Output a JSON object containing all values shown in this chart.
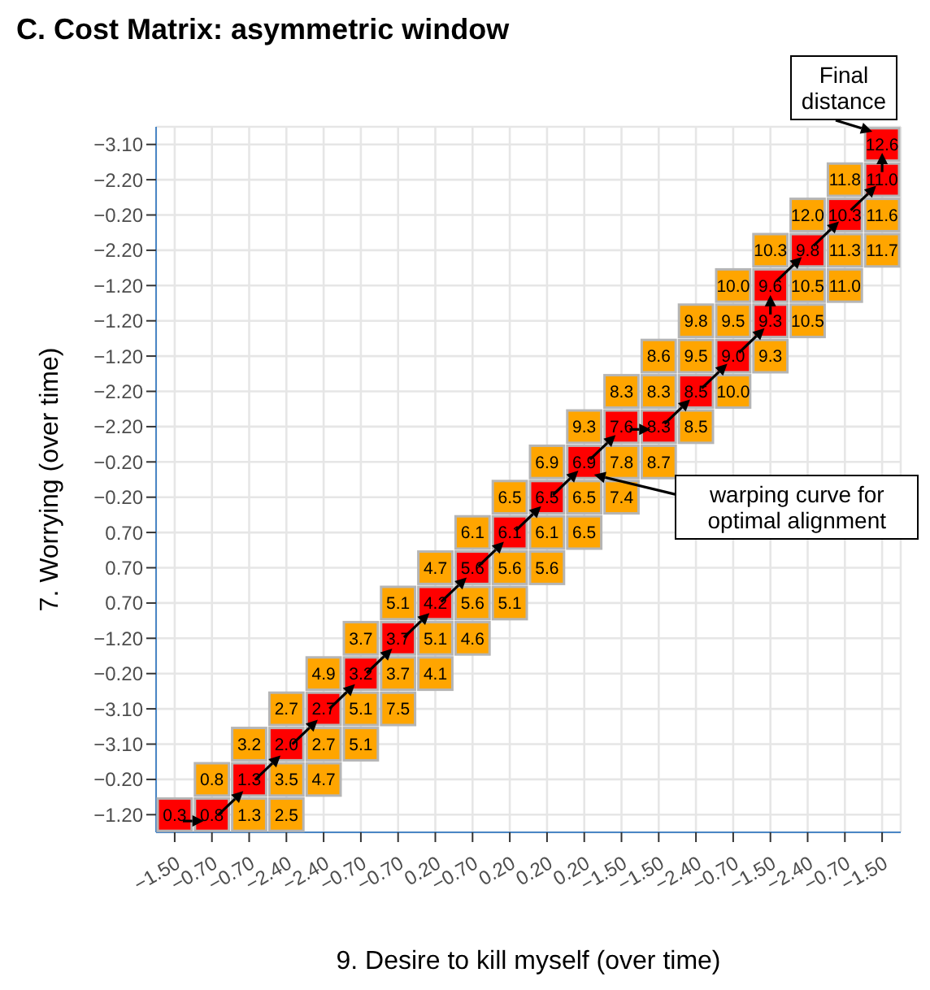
{
  "chart_data": {
    "type": "heatmap",
    "title": "C. Cost Matrix: asymmetric window",
    "xlabel": "9. Desire to kill myself (over time)",
    "ylabel": "7. Worrying (over time)",
    "categories": [
      "−1.50",
      "−0.70",
      "−0.70",
      "−2.40",
      "−2.40",
      "−0.70",
      "−0.70",
      "0.20",
      "−0.70",
      "0.20",
      "0.20",
      "0.20",
      "−1.50",
      "−1.50",
      "−2.40",
      "−0.70",
      "−1.50",
      "−2.40",
      "−0.70",
      "−1.50"
    ],
    "y_categories": [
      "−3.10",
      "−2.20",
      "−0.20",
      "−2.20",
      "−1.20",
      "−1.20",
      "−1.20",
      "−2.20",
      "−2.20",
      "−0.20",
      "−0.20",
      "0.70",
      "0.70",
      "0.70",
      "−1.20",
      "−0.20",
      "−3.10",
      "−3.10",
      "−0.20",
      "−1.20"
    ],
    "cells": [
      [
        null,
        null,
        null,
        null,
        null,
        null,
        null,
        null,
        null,
        null,
        null,
        null,
        null,
        null,
        null,
        null,
        null,
        null,
        null,
        12.6
      ],
      [
        null,
        null,
        null,
        null,
        null,
        null,
        null,
        null,
        null,
        null,
        null,
        null,
        null,
        null,
        null,
        null,
        null,
        null,
        11.8,
        11.0
      ],
      [
        null,
        null,
        null,
        null,
        null,
        null,
        null,
        null,
        null,
        null,
        null,
        null,
        null,
        null,
        null,
        null,
        null,
        12.0,
        10.3,
        11.6
      ],
      [
        null,
        null,
        null,
        null,
        null,
        null,
        null,
        null,
        null,
        null,
        null,
        null,
        null,
        null,
        null,
        null,
        10.3,
        9.8,
        11.3,
        11.7
      ],
      [
        null,
        null,
        null,
        null,
        null,
        null,
        null,
        null,
        null,
        null,
        null,
        null,
        null,
        null,
        null,
        10.0,
        9.6,
        10.5,
        11.0,
        null
      ],
      [
        null,
        null,
        null,
        null,
        null,
        null,
        null,
        null,
        null,
        null,
        null,
        null,
        null,
        null,
        9.8,
        9.5,
        9.3,
        10.5,
        null,
        null
      ],
      [
        null,
        null,
        null,
        null,
        null,
        null,
        null,
        null,
        null,
        null,
        null,
        null,
        null,
        8.6,
        9.5,
        9.0,
        9.3,
        null,
        null,
        null
      ],
      [
        null,
        null,
        null,
        null,
        null,
        null,
        null,
        null,
        null,
        null,
        null,
        null,
        8.3,
        8.3,
        8.5,
        10.0,
        null,
        null,
        null,
        null
      ],
      [
        null,
        null,
        null,
        null,
        null,
        null,
        null,
        null,
        null,
        null,
        null,
        9.3,
        7.6,
        8.3,
        8.5,
        null,
        null,
        null,
        null,
        null
      ],
      [
        null,
        null,
        null,
        null,
        null,
        null,
        null,
        null,
        null,
        null,
        6.9,
        6.9,
        7.8,
        8.7,
        null,
        null,
        null,
        null,
        null,
        null
      ],
      [
        null,
        null,
        null,
        null,
        null,
        null,
        null,
        null,
        null,
        6.5,
        6.5,
        6.5,
        7.4,
        null,
        null,
        null,
        null,
        null,
        null,
        null
      ],
      [
        null,
        null,
        null,
        null,
        null,
        null,
        null,
        null,
        6.1,
        6.1,
        6.1,
        6.5,
        null,
        null,
        null,
        null,
        null,
        null,
        null,
        null
      ],
      [
        null,
        null,
        null,
        null,
        null,
        null,
        null,
        4.7,
        5.6,
        5.6,
        5.6,
        null,
        null,
        null,
        null,
        null,
        null,
        null,
        null,
        null
      ],
      [
        null,
        null,
        null,
        null,
        null,
        null,
        5.1,
        4.2,
        5.6,
        5.1,
        null,
        null,
        null,
        null,
        null,
        null,
        null,
        null,
        null,
        null
      ],
      [
        null,
        null,
        null,
        null,
        null,
        3.7,
        3.7,
        5.1,
        4.6,
        null,
        null,
        null,
        null,
        null,
        null,
        null,
        null,
        null,
        null,
        null
      ],
      [
        null,
        null,
        null,
        null,
        4.9,
        3.2,
        3.7,
        4.1,
        null,
        null,
        null,
        null,
        null,
        null,
        null,
        null,
        null,
        null,
        null,
        null
      ],
      [
        null,
        null,
        null,
        2.7,
        2.7,
        5.1,
        7.5,
        null,
        null,
        null,
        null,
        null,
        null,
        null,
        null,
        null,
        null,
        null,
        null,
        null
      ],
      [
        null,
        null,
        3.2,
        2.0,
        2.7,
        5.1,
        null,
        null,
        null,
        null,
        null,
        null,
        null,
        null,
        null,
        null,
        null,
        null,
        null,
        null
      ],
      [
        null,
        0.8,
        1.3,
        3.5,
        4.7,
        null,
        null,
        null,
        null,
        null,
        null,
        null,
        null,
        null,
        null,
        null,
        null,
        null,
        null,
        null
      ],
      [
        0.3,
        0.8,
        1.3,
        2.5,
        null,
        null,
        null,
        null,
        null,
        null,
        null,
        null,
        null,
        null,
        null,
        null,
        null,
        null,
        null,
        null
      ]
    ],
    "cell_labels": [
      [
        null,
        null,
        null,
        null,
        null,
        null,
        null,
        null,
        null,
        null,
        null,
        null,
        null,
        null,
        null,
        null,
        null,
        null,
        null,
        "12.6"
      ],
      [
        null,
        null,
        null,
        null,
        null,
        null,
        null,
        null,
        null,
        null,
        null,
        null,
        null,
        null,
        null,
        null,
        null,
        null,
        "11.8",
        "11.0"
      ],
      [
        null,
        null,
        null,
        null,
        null,
        null,
        null,
        null,
        null,
        null,
        null,
        null,
        null,
        null,
        null,
        null,
        null,
        "12.0",
        "10.3",
        "11.6"
      ],
      [
        null,
        null,
        null,
        null,
        null,
        null,
        null,
        null,
        null,
        null,
        null,
        null,
        null,
        null,
        null,
        null,
        "10.3",
        "9.8",
        "11.3",
        "11.7"
      ],
      [
        null,
        null,
        null,
        null,
        null,
        null,
        null,
        null,
        null,
        null,
        null,
        null,
        null,
        null,
        null,
        "10.0",
        "9.6",
        "10.5",
        "11.0",
        null
      ],
      [
        null,
        null,
        null,
        null,
        null,
        null,
        null,
        null,
        null,
        null,
        null,
        null,
        null,
        null,
        "9.8",
        "9.5",
        "9.3",
        "10.5",
        null,
        null
      ],
      [
        null,
        null,
        null,
        null,
        null,
        null,
        null,
        null,
        null,
        null,
        null,
        null,
        null,
        "8.6",
        "9.5",
        "9.0",
        "9.3",
        null,
        null,
        null
      ],
      [
        null,
        null,
        null,
        null,
        null,
        null,
        null,
        null,
        null,
        null,
        null,
        null,
        "8.3",
        "8.3",
        "8.5",
        "10.0",
        null,
        null,
        null,
        null
      ],
      [
        null,
        null,
        null,
        null,
        null,
        null,
        null,
        null,
        null,
        null,
        null,
        "9.3",
        "7.6",
        "8.3",
        "8.5",
        null,
        null,
        null,
        null,
        null
      ],
      [
        null,
        null,
        null,
        null,
        null,
        null,
        null,
        null,
        null,
        null,
        "6.9",
        "6.9",
        "7.8",
        "8.7",
        null,
        null,
        null,
        null,
        null,
        null
      ],
      [
        null,
        null,
        null,
        null,
        null,
        null,
        null,
        null,
        null,
        "6.5",
        "6.5",
        "6.5",
        "7.4",
        null,
        null,
        null,
        null,
        null,
        null,
        null
      ],
      [
        null,
        null,
        null,
        null,
        null,
        null,
        null,
        null,
        "6.1",
        "6.1",
        "6.1",
        "6.5",
        null,
        null,
        null,
        null,
        null,
        null,
        null,
        null
      ],
      [
        null,
        null,
        null,
        null,
        null,
        null,
        null,
        "4.7",
        "5.6",
        "5.6",
        "5.6",
        null,
        null,
        null,
        null,
        null,
        null,
        null,
        null,
        null
      ],
      [
        null,
        null,
        null,
        null,
        null,
        null,
        "5.1",
        "4.2",
        "5.6",
        "5.1",
        null,
        null,
        null,
        null,
        null,
        null,
        null,
        null,
        null,
        null
      ],
      [
        null,
        null,
        null,
        null,
        null,
        "3.7",
        "3.7",
        "5.1",
        "4.6",
        null,
        null,
        null,
        null,
        null,
        null,
        null,
        null,
        null,
        null,
        null
      ],
      [
        null,
        null,
        null,
        null,
        "4.9",
        "3.2",
        "3.7",
        "4.1",
        null,
        null,
        null,
        null,
        null,
        null,
        null,
        null,
        null,
        null,
        null,
        null
      ],
      [
        null,
        null,
        null,
        "2.7",
        "2.7",
        "5.1",
        "7.5",
        null,
        null,
        null,
        null,
        null,
        null,
        null,
        null,
        null,
        null,
        null,
        null,
        null
      ],
      [
        null,
        null,
        "3.2",
        "2.0",
        "2.7",
        "5.1",
        null,
        null,
        null,
        null,
        null,
        null,
        null,
        null,
        null,
        null,
        null,
        null,
        null,
        null
      ],
      [
        null,
        "0.8",
        "1.3",
        "3.5",
        "4.7",
        null,
        null,
        null,
        null,
        null,
        null,
        null,
        null,
        null,
        null,
        null,
        null,
        null,
        null,
        null
      ],
      [
        "0.3",
        "0.8",
        "1.3",
        "2.5",
        null,
        null,
        null,
        null,
        null,
        null,
        null,
        null,
        null,
        null,
        null,
        null,
        null,
        null,
        null,
        null
      ]
    ],
    "colors": [
      [
        null,
        null,
        null,
        null,
        null,
        null,
        null,
        null,
        null,
        null,
        null,
        null,
        null,
        null,
        null,
        null,
        null,
        null,
        null,
        "#ff0000"
      ],
      [
        null,
        null,
        null,
        null,
        null,
        null,
        null,
        null,
        null,
        null,
        null,
        null,
        null,
        null,
        null,
        null,
        null,
        null,
        "#ffa500",
        "#ff0000"
      ],
      [
        null,
        null,
        null,
        null,
        null,
        null,
        null,
        null,
        null,
        null,
        null,
        null,
        null,
        null,
        null,
        null,
        null,
        "#ffa500",
        "#ff0000",
        "#ffa500"
      ],
      [
        null,
        null,
        null,
        null,
        null,
        null,
        null,
        null,
        null,
        null,
        null,
        null,
        null,
        null,
        null,
        null,
        "#ffa500",
        "#ff0000",
        "#ffa500",
        "#ffa500"
      ],
      [
        null,
        null,
        null,
        null,
        null,
        null,
        null,
        null,
        null,
        null,
        null,
        null,
        null,
        null,
        null,
        "#ffa500",
        "#ff0000",
        "#ffa500",
        "#ffa500",
        null
      ],
      [
        null,
        null,
        null,
        null,
        null,
        null,
        null,
        null,
        null,
        null,
        null,
        null,
        null,
        null,
        "#ffa500",
        "#ffa500",
        "#ff0000",
        "#ffa500",
        null,
        null
      ],
      [
        null,
        null,
        null,
        null,
        null,
        null,
        null,
        null,
        null,
        null,
        null,
        null,
        null,
        "#ffa500",
        "#ffa500",
        "#ff0000",
        "#ffa500",
        null,
        null,
        null
      ],
      [
        null,
        null,
        null,
        null,
        null,
        null,
        null,
        null,
        null,
        null,
        null,
        null,
        "#ffa500",
        "#ffa500",
        "#ff0000",
        "#ffa500",
        null,
        null,
        null,
        null
      ],
      [
        null,
        null,
        null,
        null,
        null,
        null,
        null,
        null,
        null,
        null,
        null,
        "#ffa500",
        "#ff0000",
        "#ff0000",
        "#ffa500",
        null,
        null,
        null,
        null,
        null
      ],
      [
        null,
        null,
        null,
        null,
        null,
        null,
        null,
        null,
        null,
        null,
        "#ffa500",
        "#ff0000",
        "#ffa500",
        "#ffa500",
        null,
        null,
        null,
        null,
        null,
        null
      ],
      [
        null,
        null,
        null,
        null,
        null,
        null,
        null,
        null,
        null,
        "#ffa500",
        "#ff0000",
        "#ffa500",
        "#ffa500",
        null,
        null,
        null,
        null,
        null,
        null,
        null
      ],
      [
        null,
        null,
        null,
        null,
        null,
        null,
        null,
        null,
        "#ffa500",
        "#ff0000",
        "#ffa500",
        "#ffa500",
        null,
        null,
        null,
        null,
        null,
        null,
        null,
        null
      ],
      [
        null,
        null,
        null,
        null,
        null,
        null,
        null,
        "#ffa500",
        "#ff0000",
        "#ffa500",
        "#ffa500",
        null,
        null,
        null,
        null,
        null,
        null,
        null,
        null,
        null
      ],
      [
        null,
        null,
        null,
        null,
        null,
        null,
        "#ffa500",
        "#ff0000",
        "#ffa500",
        "#ffa500",
        null,
        null,
        null,
        null,
        null,
        null,
        null,
        null,
        null,
        null
      ],
      [
        null,
        null,
        null,
        null,
        null,
        "#ffa500",
        "#ff0000",
        "#ffa500",
        "#ffa500",
        null,
        null,
        null,
        null,
        null,
        null,
        null,
        null,
        null,
        null,
        null
      ],
      [
        null,
        null,
        null,
        null,
        "#ffa500",
        "#ff0000",
        "#ffa500",
        "#ffa500",
        null,
        null,
        null,
        null,
        null,
        null,
        null,
        null,
        null,
        null,
        null,
        null
      ],
      [
        null,
        null,
        null,
        "#ffa500",
        "#ff0000",
        "#ffa500",
        "#ffa500",
        null,
        null,
        null,
        null,
        null,
        null,
        null,
        null,
        null,
        null,
        null,
        null,
        null
      ],
      [
        null,
        null,
        "#ffa500",
        "#ff0000",
        "#ffa500",
        "#ffa500",
        null,
        null,
        null,
        null,
        null,
        null,
        null,
        null,
        null,
        null,
        null,
        null,
        null,
        null
      ],
      [
        null,
        "#ffa500",
        "#ff0000",
        "#ffa500",
        "#ffa500",
        null,
        null,
        null,
        null,
        null,
        null,
        null,
        null,
        null,
        null,
        null,
        null,
        null,
        null,
        null
      ],
      [
        "#ff0000",
        "#ff0000",
        "#ffa500",
        "#ffa500",
        null,
        null,
        null,
        null,
        null,
        null,
        null,
        null,
        null,
        null,
        null,
        null,
        null,
        null,
        null,
        null
      ]
    ],
    "data_labels": true,
    "grid": true,
    "annotations": [
      "Final distance",
      "warping curve for optimal alignment"
    ]
  }
}
